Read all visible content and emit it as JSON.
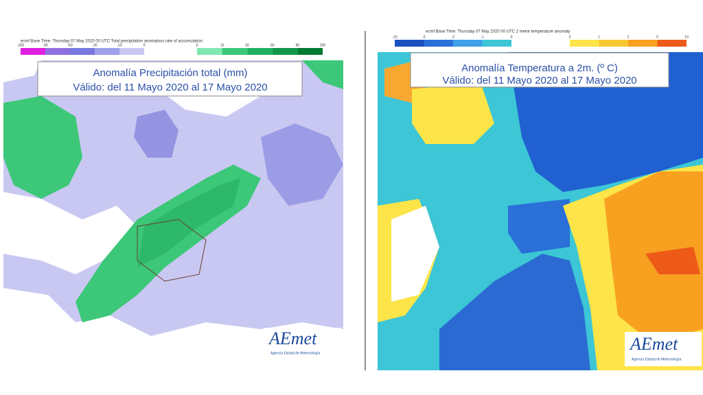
{
  "left_panel": {
    "header": "ecmf  Base Time: Thursday 07 May 2020 00 UTC  Total precipitation anomalous rate of accumulation",
    "legend_negative": [
      "-200",
      "-90",
      "-60",
      "-30",
      "-10",
      "0"
    ],
    "legend_positive": [
      "0",
      "10",
      "30",
      "60",
      "90",
      "200"
    ],
    "title": "Anomalía Precipitación total (mm)",
    "subtitle": "Válido: del 11 Mayo 2020 al 17 Mayo 2020",
    "logo": "AEmet",
    "logo_caption": "Agencia Estatal de Meteorología"
  },
  "right_panel": {
    "header": "ecmf  Base Time: Thursday 07 May 2020 00 UTC  2 metre temperature anomaly",
    "legend_negative": [
      "-10",
      "-5",
      "-2",
      "-1",
      "0"
    ],
    "legend_positive": [
      "0",
      "1",
      "2",
      "5",
      "10"
    ],
    "title": "Anomalía Temperatura a 2m. (º C)",
    "subtitle": "Válido: del 11 Mayo 2020 al 17 Mayo 2020",
    "logo": "AEmet",
    "logo_caption": "Agencia Estatal de Meteorología"
  }
}
